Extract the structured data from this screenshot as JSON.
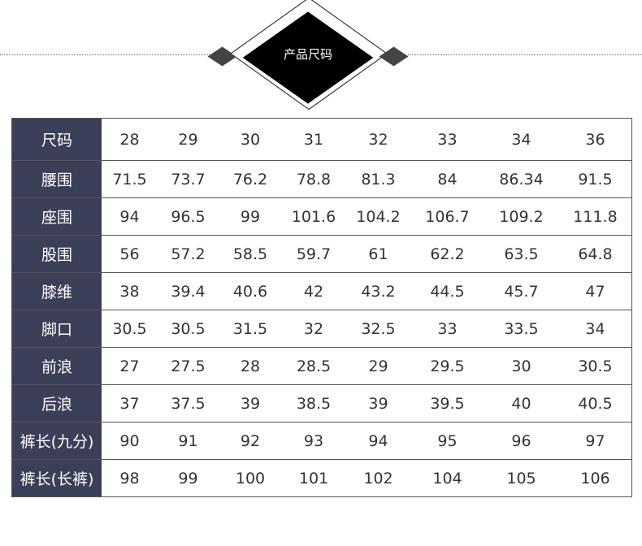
{
  "header": {
    "title": "产品尺码"
  },
  "table": {
    "rows": [
      {
        "label": "尺码",
        "values": [
          "28",
          "29",
          "30",
          "31",
          "32",
          "33",
          "34",
          "36"
        ]
      },
      {
        "label": "腰围",
        "values": [
          "71.5",
          "73.7",
          "76.2",
          "78.8",
          "81.3",
          "84",
          "86.34",
          "91.5"
        ]
      },
      {
        "label": "座围",
        "values": [
          "94",
          "96.5",
          "99",
          "101.6",
          "104.2",
          "106.7",
          "109.2",
          "111.8"
        ]
      },
      {
        "label": "股围",
        "values": [
          "56",
          "57.2",
          "58.5",
          "59.7",
          "61",
          "62.2",
          "63.5",
          "64.8"
        ]
      },
      {
        "label": "膝维",
        "values": [
          "38",
          "39.4",
          "40.6",
          "42",
          "43.2",
          "44.5",
          "45.7",
          "47"
        ]
      },
      {
        "label": "脚口",
        "values": [
          "30.5",
          "30.5",
          "31.5",
          "32",
          "32.5",
          "33",
          "33.5",
          "34"
        ]
      },
      {
        "label": "前浪",
        "values": [
          "27",
          "27.5",
          "28",
          "28.5",
          "29",
          "29.5",
          "30",
          "30.5"
        ]
      },
      {
        "label": "后浪",
        "values": [
          "37",
          "37.5",
          "39",
          "38.5",
          "39",
          "39.5",
          "40",
          "40.5"
        ]
      },
      {
        "label": "裤长(九分)",
        "values": [
          "90",
          "91",
          "92",
          "93",
          "94",
          "95",
          "96",
          "97"
        ]
      },
      {
        "label": "裤长(长裤)",
        "values": [
          "98",
          "99",
          "100",
          "101",
          "102",
          "104",
          "105",
          "106"
        ]
      }
    ]
  },
  "colors": {
    "label_bg": "#3c3f58",
    "label_text": "#ffffff"
  }
}
